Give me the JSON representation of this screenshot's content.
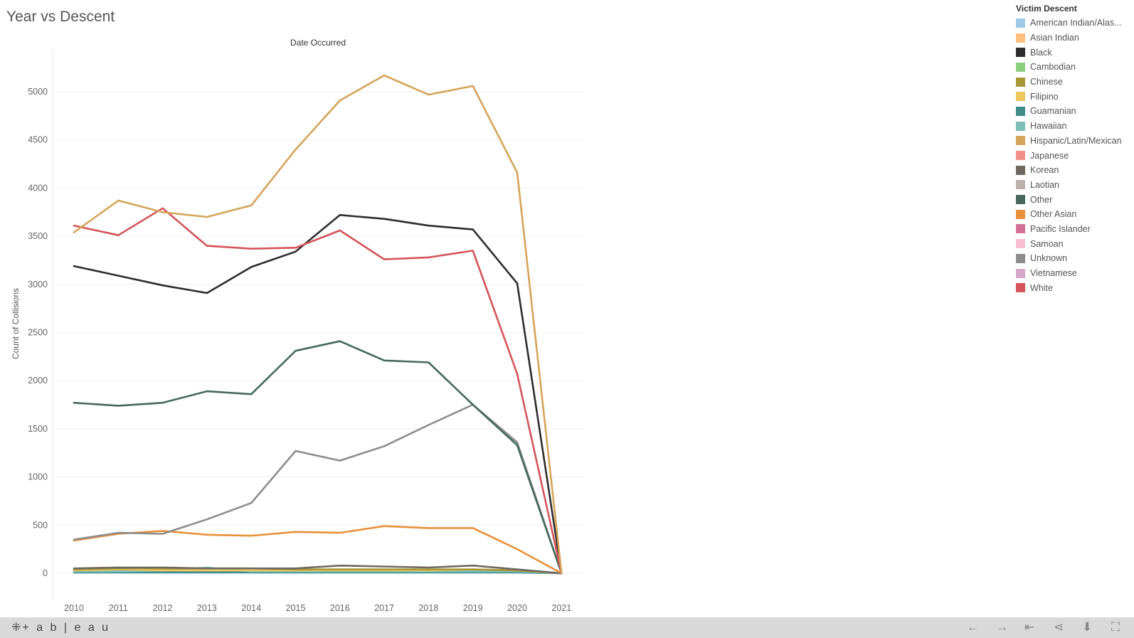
{
  "title": "Year vs Descent",
  "chart_data": {
    "type": "line",
    "title": "Year vs Descent",
    "column_header": "Date Occurred",
    "xlabel": "Date Occurred",
    "ylabel": "Count of Collisions",
    "x": [
      2010,
      2011,
      2012,
      2013,
      2014,
      2015,
      2016,
      2017,
      2018,
      2019,
      2020,
      2021
    ],
    "ylim": [
      -250,
      5500
    ],
    "yticks": [
      0,
      500,
      1000,
      1500,
      2000,
      2500,
      3000,
      3500,
      4000,
      4500,
      5000
    ],
    "grid": true,
    "legend_position": "right",
    "series": [
      {
        "name": "Hispanic/Latin/Mexican",
        "color": "#d4a55a",
        "values": [
          3540,
          3870,
          3750,
          3700,
          3820,
          4400,
          4910,
          5170,
          4970,
          5060,
          4160,
          0
        ]
      },
      {
        "name": "White",
        "color": "#d4545a",
        "values": [
          3610,
          3510,
          3790,
          3400,
          3370,
          3380,
          3560,
          3260,
          3280,
          3350,
          2070,
          0
        ]
      },
      {
        "name": "Black",
        "color": "#2d2d2d",
        "values": [
          3190,
          3090,
          2990,
          2910,
          3180,
          3340,
          3720,
          3680,
          3610,
          3570,
          3010,
          0
        ]
      },
      {
        "name": "Other",
        "color": "#46695c",
        "values": [
          1770,
          1740,
          1770,
          1890,
          1860,
          2310,
          2410,
          2210,
          2190,
          1750,
          1330,
          0
        ]
      },
      {
        "name": "Unknown",
        "color": "#8c8c8c",
        "values": [
          350,
          420,
          410,
          560,
          730,
          1270,
          1170,
          1320,
          1540,
          1750,
          1360,
          0
        ]
      },
      {
        "name": "Other Asian",
        "color": "#e8913a",
        "values": [
          340,
          410,
          440,
          400,
          390,
          430,
          420,
          490,
          470,
          470,
          250,
          0
        ]
      },
      {
        "name": "Korean",
        "color": "#6e6860",
        "values": [
          50,
          60,
          60,
          50,
          50,
          50,
          80,
          70,
          60,
          80,
          40,
          0
        ]
      },
      {
        "name": "Chinese",
        "color": "#a89637",
        "values": [
          40,
          50,
          50,
          50,
          50,
          40,
          40,
          40,
          40,
          40,
          30,
          0
        ]
      },
      {
        "name": "Filipino",
        "color": "#f0c75e",
        "values": [
          30,
          40,
          30,
          30,
          30,
          30,
          30,
          30,
          30,
          40,
          30,
          0
        ]
      },
      {
        "name": "Hawaiian",
        "color": "#7dbfb5",
        "values": [
          20,
          20,
          30,
          60,
          20,
          20,
          20,
          20,
          20,
          20,
          20,
          0
        ]
      },
      {
        "name": "Guamanian",
        "color": "#3f8f88",
        "values": [
          10,
          10,
          10,
          10,
          10,
          10,
          10,
          10,
          10,
          10,
          10,
          0
        ]
      },
      {
        "name": "Japanese",
        "color": "#f28e8b",
        "values": [
          20,
          20,
          20,
          20,
          20,
          20,
          20,
          20,
          20,
          20,
          20,
          0
        ]
      },
      {
        "name": "Vietnamese",
        "color": "#d4a6c8",
        "values": [
          20,
          20,
          20,
          20,
          20,
          20,
          20,
          20,
          20,
          20,
          20,
          0
        ]
      },
      {
        "name": "American Indian/Alas...",
        "color": "#9fcae8",
        "values": [
          5,
          5,
          5,
          5,
          5,
          5,
          5,
          5,
          5,
          5,
          5,
          0
        ]
      }
    ]
  },
  "legend": {
    "title": "Victim Descent",
    "items": [
      {
        "label": "American Indian/Alas...",
        "color": "#9fcae8"
      },
      {
        "label": "Asian Indian",
        "color": "#ffbe7d"
      },
      {
        "label": "Black",
        "color": "#2d2d2d"
      },
      {
        "label": "Cambodian",
        "color": "#8cd17d"
      },
      {
        "label": "Chinese",
        "color": "#a89637"
      },
      {
        "label": "Filipino",
        "color": "#f0c75e"
      },
      {
        "label": "Guamanian",
        "color": "#3f8f88"
      },
      {
        "label": "Hawaiian",
        "color": "#7dbfb5"
      },
      {
        "label": "Hispanic/Latin/Mexican",
        "color": "#d4a55a"
      },
      {
        "label": "Japanese",
        "color": "#f28e8b"
      },
      {
        "label": "Korean",
        "color": "#6e6860"
      },
      {
        "label": "Laotian",
        "color": "#bab0ac"
      },
      {
        "label": "Other",
        "color": "#46695c"
      },
      {
        "label": "Other Asian",
        "color": "#e8913a"
      },
      {
        "label": "Pacific Islander",
        "color": "#d37295"
      },
      {
        "label": "Samoan",
        "color": "#fabfd2"
      },
      {
        "label": "Unknown",
        "color": "#8c8c8c"
      },
      {
        "label": "Vietnamese",
        "color": "#d4a6c8"
      },
      {
        "label": "White",
        "color": "#d4545a"
      }
    ]
  },
  "footer": {
    "logo_text": "+ a b | e a u",
    "icons": [
      "back-arrow-icon",
      "forward-arrow-icon",
      "revert-icon",
      "share-icon",
      "download-icon",
      "fullscreen-icon"
    ]
  }
}
